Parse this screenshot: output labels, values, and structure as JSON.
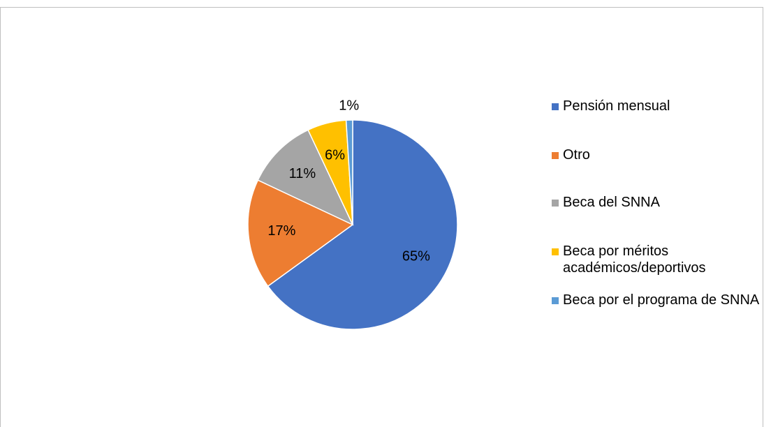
{
  "chart_data": {
    "type": "pie",
    "categories": [
      "Pensión mensual",
      "Otro",
      "Beca del SNNA",
      "Beca por méritos académicos/deportivos",
      "Beca por el programa de SNNA"
    ],
    "values": [
      65,
      17,
      11,
      6,
      1
    ],
    "value_labels": [
      "65%",
      "17%",
      "11%",
      "6%",
      "1%"
    ],
    "colors": [
      "#4472c4",
      "#ed7d31",
      "#a5a5a5",
      "#ffc000",
      "#5b9bd5"
    ],
    "legend": "right"
  }
}
